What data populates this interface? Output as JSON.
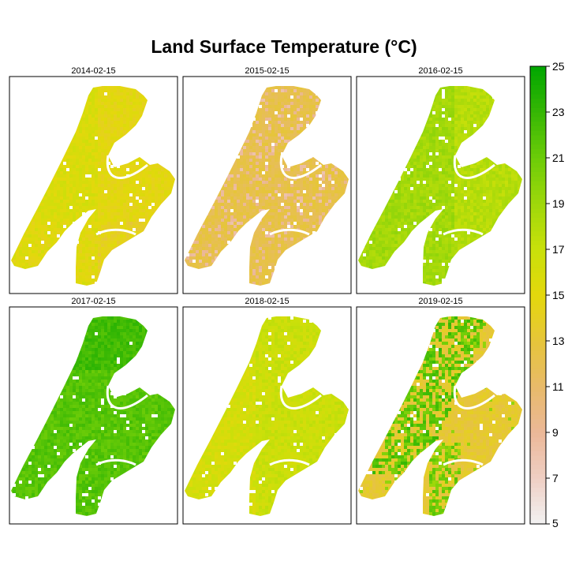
{
  "title": "Land Surface Temperature (°C)",
  "panels": [
    {
      "label": "2014-02-15",
      "base": 15.2,
      "pattern": "mixed-warm"
    },
    {
      "label": "2015-02-15",
      "base": 12.3,
      "pattern": "cool-orange"
    },
    {
      "label": "2016-02-15",
      "base": 18.5,
      "pattern": "green"
    },
    {
      "label": "2017-02-15",
      "base": 21.8,
      "pattern": "dark-green"
    },
    {
      "label": "2018-02-15",
      "base": 16.6,
      "pattern": "yellow-green"
    },
    {
      "label": "2019-02-15",
      "base": 13.3,
      "pattern": "orange-green-patches"
    }
  ],
  "colorbar": {
    "min": 5,
    "max": 25,
    "tick_values": [
      5,
      7,
      9,
      11,
      13,
      15,
      17,
      19,
      21,
      23,
      25
    ],
    "tick_labels": [
      "5",
      "7",
      "9",
      "11",
      "13",
      "15",
      "17",
      "19",
      "21",
      "23",
      "25"
    ],
    "colors": [
      "#f2f2f2",
      "#efcfc4",
      "#ebb898",
      "#e8ba6a",
      "#e6c53a",
      "#e4d80c",
      "#c9e00a",
      "#9fd80a",
      "#6ccc08",
      "#36b704",
      "#00a600"
    ]
  }
}
